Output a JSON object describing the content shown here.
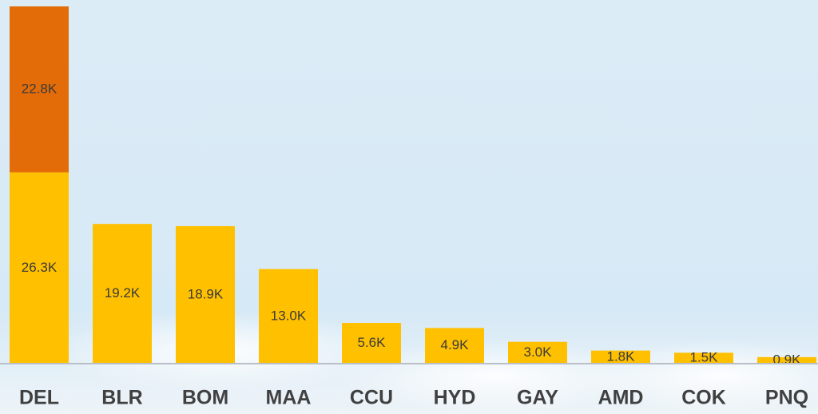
{
  "chart_data": {
    "type": "stacked-bar",
    "categories": [
      "DEL",
      "BLR",
      "BOM",
      "MAA",
      "CCU",
      "HYD",
      "GAY",
      "AMD",
      "COK",
      "PNQ"
    ],
    "series": [
      {
        "color": "#FFC000",
        "values": [
          26300,
          19200,
          18900,
          13000,
          5600,
          4900,
          3000,
          1800,
          1500,
          900
        ],
        "value_labels": [
          "26.3K",
          "19.2K",
          "18.9K",
          "13.0K",
          "5.6K",
          "4.9K",
          "3.0K",
          "1.8K",
          "1.5K",
          "0.9K"
        ]
      },
      {
        "color": "#E36C09",
        "values": [
          22800,
          null,
          null,
          null,
          null,
          null,
          null,
          null,
          null,
          null
        ],
        "value_labels": [
          "22.8K",
          null,
          null,
          null,
          null,
          null,
          null,
          null,
          null,
          null
        ]
      }
    ]
  }
}
